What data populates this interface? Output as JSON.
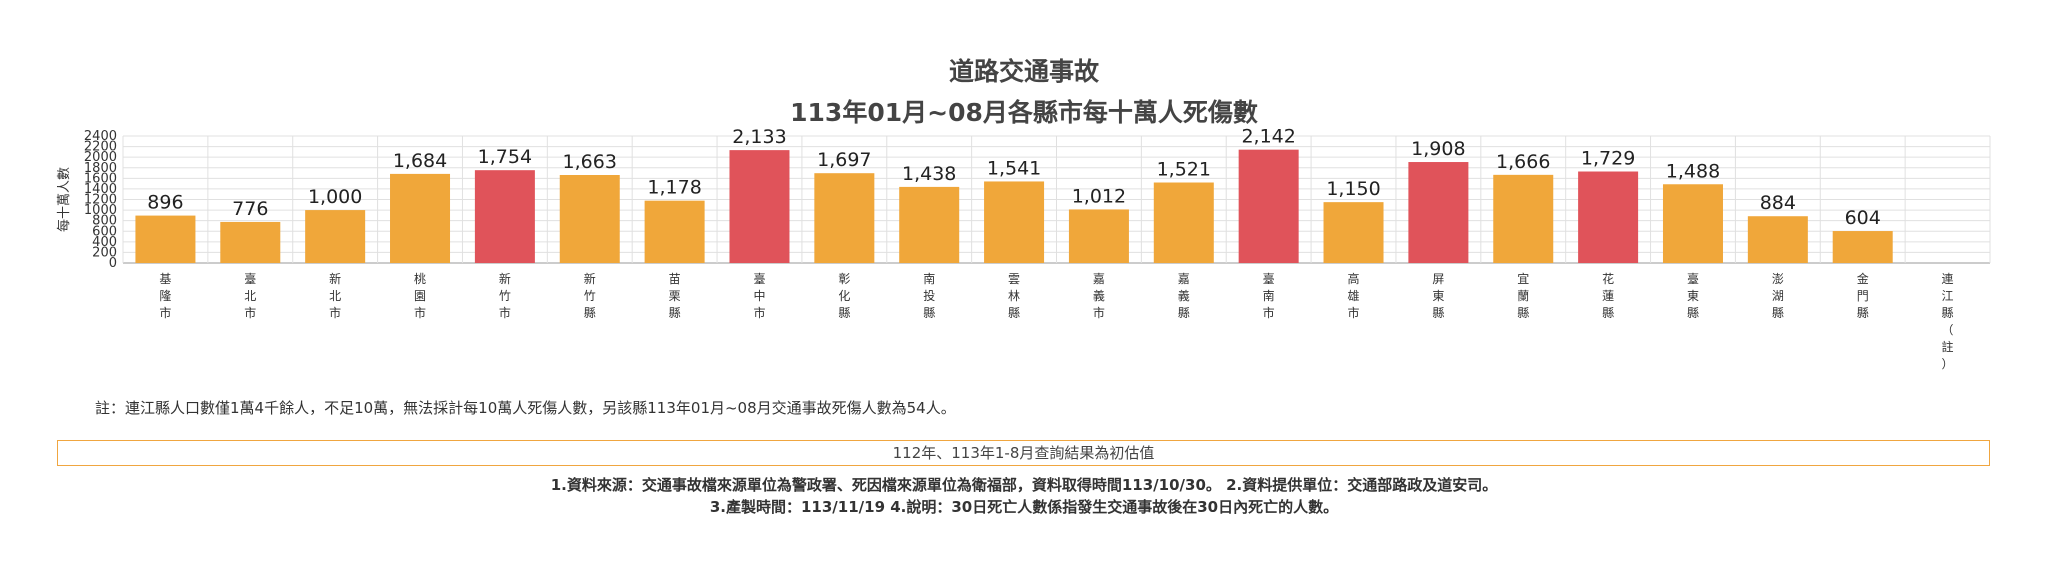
{
  "header": {
    "title": "道路交通事故",
    "subtitle": "113年01月~08月各縣市每十萬人死傷數"
  },
  "chart_data": {
    "type": "bar",
    "ylabel": "每十萬人數",
    "ylim": [
      0,
      2400
    ],
    "yticks": [
      0,
      200,
      400,
      600,
      800,
      1000,
      1200,
      1400,
      1600,
      1800,
      2000,
      2200,
      2400
    ],
    "grid": true,
    "categories": [
      "基隆市",
      "臺北市",
      "新北市",
      "桃園市",
      "新竹市",
      "新竹縣",
      "苗栗縣",
      "臺中市",
      "彰化縣",
      "南投縣",
      "雲林縣",
      "嘉義市",
      "嘉義縣",
      "臺南市",
      "高雄市",
      "屏東縣",
      "宜蘭縣",
      "花蓮縣",
      "臺東縣",
      "澎湖縣",
      "金門縣",
      "連江縣（註）"
    ],
    "values": [
      896,
      776,
      1000,
      1684,
      1754,
      1663,
      1178,
      2133,
      1697,
      1438,
      1541,
      1012,
      1521,
      2142,
      1150,
      1908,
      1666,
      1729,
      1488,
      884,
      604,
      null
    ],
    "value_labels": [
      "896",
      "776",
      "1,000",
      "1,684",
      "1,754",
      "1,663",
      "1,178",
      "2,133",
      "1,697",
      "1,438",
      "1,541",
      "1,012",
      "1,521",
      "2,142",
      "1,150",
      "1,908",
      "1,666",
      "1,729",
      "1,488",
      "884",
      "604",
      ""
    ],
    "highlighted": [
      false,
      false,
      false,
      false,
      true,
      false,
      false,
      true,
      false,
      false,
      false,
      false,
      false,
      true,
      false,
      true,
      false,
      true,
      false,
      false,
      false,
      false
    ],
    "colors": {
      "normal": "#f0a73a",
      "highlight": "#e0535a",
      "grid": "#e0e0e0"
    }
  },
  "note": "註：連江縣人口數僅1萬4千餘人，不足10萬，無法採計每10萬人死傷人數，另該縣113年01月~08月交通事故死傷人數為54人。",
  "banner": "112年、113年1-8月查詢結果為初估值",
  "footer": {
    "line1": "1.資料來源：交通事故檔來源單位為警政署、死因檔來源單位為衛福部，資料取得時間113/10/30。 2.資料提供單位：交通部路政及道安司。",
    "line2": "3.產製時間：113/11/19 4.說明：30日死亡人數係指發生交通事故後在30日內死亡的人數。"
  }
}
